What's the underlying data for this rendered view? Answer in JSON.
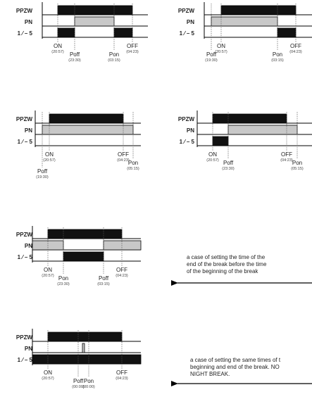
{
  "rows": [
    "PPZW",
    "PN",
    "1 ⁄ – 5"
  ],
  "colors": {
    "black": "#111111",
    "gray": "#c8c8c8",
    "line": "#000000"
  },
  "diagrams": [
    {
      "events": [
        {
          "label": "ON",
          "time": "(20:57)"
        },
        {
          "label": "Poff",
          "time": "(23:30)"
        },
        {
          "label": "Pon",
          "time": "(03:15)"
        },
        {
          "label": "OFF",
          "time": "(04:23)"
        }
      ]
    },
    {
      "events": [
        {
          "label": "ON",
          "time": "(20:57)"
        },
        {
          "label": "Poff",
          "time": "(19:30)"
        },
        {
          "label": "Pon",
          "time": "(03:15)"
        },
        {
          "label": "OFF",
          "time": "(04:23)"
        }
      ]
    },
    {
      "events": [
        {
          "label": "ON",
          "time": "(20:57)"
        },
        {
          "label": "Poff",
          "time": "(19:30)"
        },
        {
          "label": "OFF",
          "time": "(04:23)"
        },
        {
          "label": "Pon",
          "time": "(05:15)"
        }
      ]
    },
    {
      "events": [
        {
          "label": "ON",
          "time": "(20:57)"
        },
        {
          "label": "Poff",
          "time": "(23:30)"
        },
        {
          "label": "OFF",
          "time": "(04:23)"
        },
        {
          "label": "Pon",
          "time": "(05:15)"
        }
      ]
    },
    {
      "events": [
        {
          "label": "ON",
          "time": "(20:57)"
        },
        {
          "label": "Pon",
          "time": "(23:30)"
        },
        {
          "label": "Poff",
          "time": "(03:15)"
        },
        {
          "label": "OFF",
          "time": "(04:23)"
        }
      ]
    },
    {
      "events": [
        {
          "label": "ON",
          "time": "(20:57)"
        },
        {
          "label": "Poff",
          "time": "(00:00)"
        },
        {
          "label": "Pon",
          "time": "(00:00)"
        },
        {
          "label": "OFF",
          "time": "(04:23)"
        }
      ]
    }
  ],
  "notes": [
    {
      "lines": [
        "a case of setting the time of the",
        "end of the break before the time",
        "of the beginning of the break"
      ]
    },
    {
      "lines": [
        "a case of setting the same times of t",
        "beginning and end of the break. NO",
        "NIGHT BREAK."
      ]
    }
  ]
}
